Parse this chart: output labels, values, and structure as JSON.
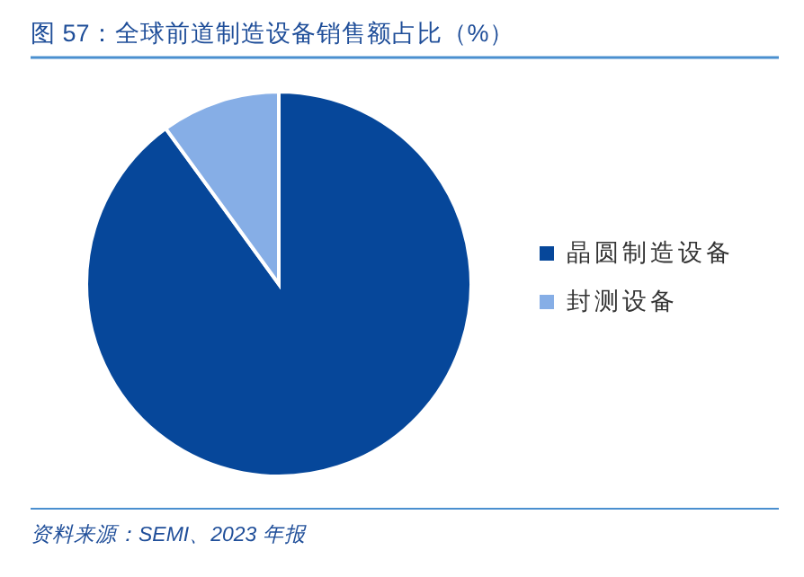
{
  "chart_data": {
    "type": "pie",
    "title": "图 57：全球前道制造设备销售额占比（%）",
    "categories": [
      "晶圆制造设备",
      "封测设备"
    ],
    "values": [
      90,
      10
    ],
    "colors": [
      "#06479a",
      "#86aee6"
    ],
    "legend": "right",
    "annotations": [
      "资料来源：SEMI、2023 年报"
    ]
  }
}
